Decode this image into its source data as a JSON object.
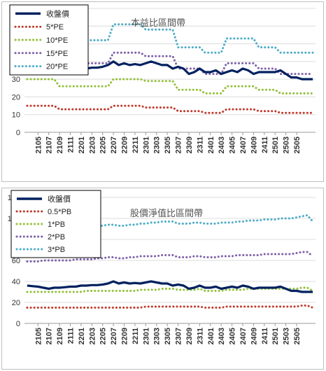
{
  "chart_data": [
    {
      "type": "line",
      "title": "本益比區間帶",
      "xlabel": "",
      "ylabel": "",
      "ylim": [
        0,
        70
      ],
      "yticks": [
        0,
        10,
        20,
        30,
        40,
        50,
        60,
        70
      ],
      "x_tick_labels": [
        "2105",
        "2107",
        "2109",
        "2111",
        "2201",
        "2203",
        "2205",
        "2207",
        "2209",
        "2211",
        "2301",
        "2303",
        "2305",
        "2307",
        "2309",
        "2311",
        "2401",
        "2403",
        "2405",
        "2407",
        "2409",
        "2411",
        "2501",
        "2503",
        "2505"
      ],
      "grid": "horizontal",
      "legend_position": "top-left",
      "series": [
        {
          "name": "收盤價",
          "color": "#002060",
          "style": "solid",
          "values": [
            36,
            35.5,
            35,
            34,
            33,
            34,
            34,
            34.5,
            35,
            35,
            36,
            36,
            36.5,
            36.5,
            37,
            38,
            40,
            38,
            39,
            38,
            38.5,
            38,
            39,
            40,
            39,
            38,
            38,
            36,
            37,
            36,
            33,
            34,
            36,
            34,
            34,
            35,
            33,
            34,
            35,
            34,
            36,
            35,
            33,
            34,
            34,
            34,
            34,
            35,
            33,
            31,
            31,
            30,
            30,
            30
          ]
        },
        {
          "name": "5*PE",
          "color": "#c0392b",
          "style": "dotted",
          "values": [
            15,
            15,
            15,
            15,
            15,
            15,
            13,
            13,
            13,
            13,
            13,
            13,
            13,
            13,
            13,
            13,
            15,
            15,
            15,
            15,
            15,
            15,
            14,
            14,
            14,
            14,
            14,
            14,
            12,
            12,
            12,
            12,
            12,
            11,
            11,
            11,
            11,
            13,
            13,
            13,
            13,
            13,
            13,
            12,
            12,
            12,
            12,
            11,
            11,
            11,
            11,
            11,
            11,
            11
          ]
        },
        {
          "name": "10*PE",
          "color": "#92c03a",
          "style": "dotted",
          "values": [
            30,
            30,
            30,
            30,
            30,
            30,
            26,
            26,
            26,
            26,
            26,
            26,
            26,
            26,
            26,
            26,
            30,
            30,
            30,
            30,
            30,
            30,
            29,
            29,
            29,
            29,
            29,
            29,
            24,
            24,
            24,
            24,
            24,
            22,
            22,
            22,
            22,
            26,
            26,
            26,
            26,
            26,
            26,
            24,
            24,
            24,
            24,
            22,
            22,
            22,
            22,
            22,
            22,
            22
          ]
        },
        {
          "name": "15*PE",
          "color": "#7d5fa8",
          "style": "dotted",
          "values": [
            45,
            45,
            45,
            45,
            45,
            45,
            39,
            39,
            39,
            39,
            39,
            39,
            39,
            39,
            39,
            39,
            45,
            45,
            45,
            45,
            45,
            45,
            43,
            43,
            43,
            43,
            43,
            43,
            36,
            36,
            36,
            36,
            36,
            33,
            33,
            33,
            33,
            39,
            39,
            39,
            39,
            39,
            39,
            36,
            36,
            36,
            36,
            33,
            33,
            33,
            33,
            33,
            33,
            33
          ]
        },
        {
          "name": "20*PE",
          "color": "#4bacc6",
          "style": "dotted",
          "values": [
            61,
            61,
            61,
            61,
            61,
            61,
            52,
            52,
            52,
            52,
            52,
            52,
            52,
            52,
            52,
            52,
            61,
            61,
            61,
            61,
            61,
            61,
            58,
            58,
            58,
            58,
            58,
            58,
            48,
            48,
            48,
            48,
            48,
            45,
            45,
            45,
            45,
            53,
            53,
            53,
            53,
            53,
            53,
            48,
            48,
            48,
            48,
            45,
            45,
            45,
            45,
            45,
            45,
            45
          ]
        }
      ]
    },
    {
      "type": "line",
      "title": "股價淨值比區間帶",
      "xlabel": "",
      "ylabel": "",
      "ylim": [
        0,
        120
      ],
      "yticks": [
        0,
        20,
        40,
        60,
        80,
        100,
        120
      ],
      "x_tick_labels": [
        "2105",
        "2107",
        "2109",
        "2111",
        "2201",
        "2203",
        "2205",
        "2207",
        "2209",
        "2211",
        "2301",
        "2303",
        "2305",
        "2307",
        "2309",
        "2311",
        "2401",
        "2403",
        "2405",
        "2407",
        "2409",
        "2411",
        "2501",
        "2503",
        "2505"
      ],
      "grid": "horizontal",
      "legend_position": "top-left",
      "series": [
        {
          "name": "收盤價",
          "color": "#002060",
          "style": "solid",
          "values": [
            36,
            35.5,
            35,
            34,
            33,
            34,
            34,
            34.5,
            35,
            35,
            36,
            36,
            36.5,
            36.5,
            37,
            38,
            40,
            38,
            39,
            38,
            38.5,
            38,
            39,
            40,
            39,
            38,
            38,
            36,
            37,
            36,
            33,
            34,
            36,
            34,
            34,
            35,
            33,
            34,
            35,
            34,
            36,
            35,
            33,
            34,
            34,
            34,
            34,
            35,
            33,
            31,
            31,
            30,
            30,
            30
          ]
        },
        {
          "name": "0.5*PB",
          "color": "#c0392b",
          "style": "dotted",
          "values": [
            15,
            15,
            15,
            15,
            15,
            15,
            15,
            15,
            15,
            15,
            15,
            15,
            15,
            15,
            15,
            15,
            15,
            15,
            15,
            15,
            15,
            15,
            16,
            16,
            16,
            16,
            16,
            16,
            16,
            16,
            16,
            16,
            16,
            15,
            15,
            15,
            15,
            16,
            16,
            16,
            16,
            16,
            16,
            16,
            16,
            16,
            16,
            16,
            16,
            16,
            16,
            17,
            17,
            15
          ]
        },
        {
          "name": "1*PB",
          "color": "#92c03a",
          "style": "dotted",
          "values": [
            30,
            30,
            30,
            30,
            30,
            30,
            30,
            30,
            30,
            30,
            30,
            31,
            31,
            31,
            31,
            31,
            31,
            31,
            31,
            31,
            31,
            32,
            32,
            32,
            32,
            33,
            33,
            33,
            32,
            32,
            32,
            32,
            33,
            31,
            31,
            31,
            31,
            32,
            32,
            32,
            32,
            33,
            33,
            33,
            33,
            33,
            33,
            33,
            33,
            33,
            33,
            34,
            34,
            31
          ]
        },
        {
          "name": "2*PB",
          "color": "#7d5fa8",
          "style": "dotted",
          "values": [
            59,
            59,
            59,
            60,
            60,
            60,
            60,
            60,
            60,
            61,
            61,
            61,
            61,
            62,
            62,
            63,
            63,
            62,
            62,
            63,
            63,
            64,
            64,
            64,
            64,
            65,
            65,
            65,
            63,
            63,
            63,
            64,
            64,
            63,
            63,
            63,
            64,
            64,
            64,
            65,
            65,
            65,
            65,
            65,
            66,
            66,
            66,
            66,
            66,
            66,
            67,
            68,
            68,
            64
          ]
        },
        {
          "name": "3*PB",
          "color": "#4bacc6",
          "style": "dotted",
          "values": [
            89,
            89,
            89,
            90,
            90,
            90,
            90,
            90,
            91,
            91,
            91,
            92,
            92,
            93,
            93,
            94,
            94,
            93,
            93,
            94,
            94,
            95,
            95,
            96,
            96,
            97,
            97,
            97,
            95,
            95,
            95,
            96,
            96,
            95,
            95,
            95,
            96,
            96,
            96,
            97,
            97,
            98,
            98,
            98,
            99,
            99,
            99,
            100,
            100,
            100,
            101,
            102,
            103,
            97
          ]
        }
      ]
    }
  ]
}
